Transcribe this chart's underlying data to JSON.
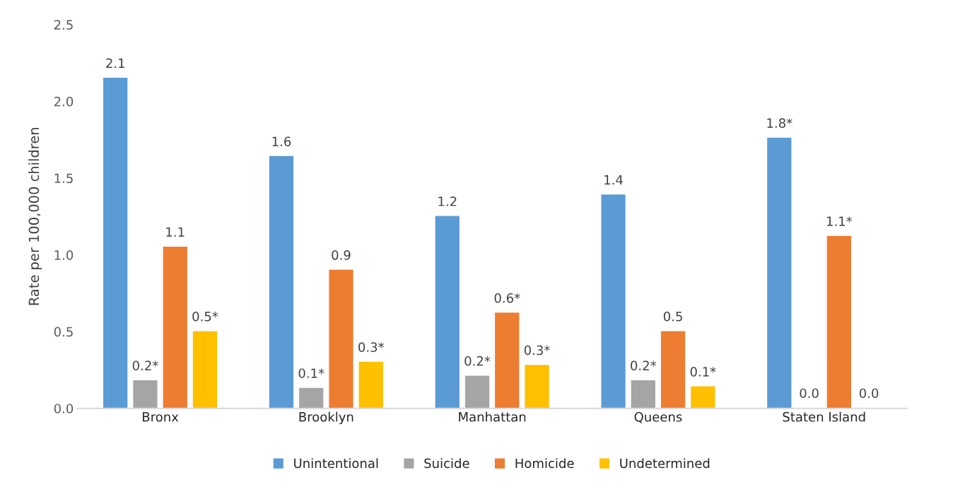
{
  "chart_data": {
    "type": "bar",
    "ylabel": "Rate per 100,000 children",
    "categories": [
      "Bronx",
      "Brooklyn",
      "Manhattan",
      "Queens",
      "Staten Island"
    ],
    "series": [
      {
        "name": "Unintentional",
        "color": "#5b9bd5",
        "values": [
          2.15,
          1.64,
          1.25,
          1.39,
          1.76
        ],
        "value_labels": [
          "2.1",
          "1.6",
          "1.2",
          "1.4",
          "1.8*"
        ]
      },
      {
        "name": "Suicide",
        "color": "#a5a5a5",
        "values": [
          0.18,
          0.13,
          0.21,
          0.18,
          0
        ],
        "value_labels": [
          "0.2*",
          "0.1*",
          "0.2*",
          "0.2*",
          "0.0"
        ]
      },
      {
        "name": "Homicide",
        "color": "#ed7d31",
        "values": [
          1.05,
          0.9,
          0.62,
          0.5,
          1.12
        ],
        "value_labels": [
          "1.1",
          "0.9",
          "0.6*",
          "0.5",
          "1.1*"
        ]
      },
      {
        "name": "Undetermined",
        "color": "#ffc000",
        "values": [
          0.5,
          0.3,
          0.28,
          0.14,
          0
        ],
        "value_labels": [
          "0.5*",
          "0.3*",
          "0.3*",
          "0.1*",
          "0.0"
        ]
      }
    ],
    "ylim": [
      0,
      2.5
    ],
    "yticks": [
      "0.0",
      0.5,
      "1.0",
      1.5,
      "2.0",
      2.5
    ],
    "grid": false,
    "legend": "bottom"
  }
}
